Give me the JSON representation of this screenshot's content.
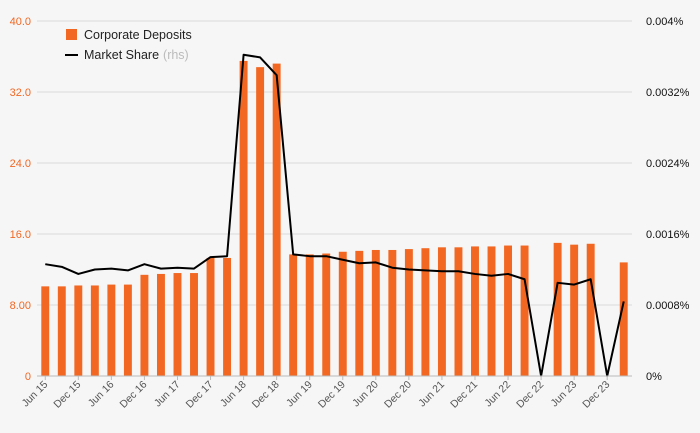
{
  "chart_data": {
    "type": "bar",
    "categories": [
      "Jun 15",
      "Sep 15",
      "Dec 15",
      "Mar 16",
      "Jun 16",
      "Sep 16",
      "Dec 16",
      "Mar 17",
      "Jun 17",
      "Sep 17",
      "Dec 17",
      "Mar 18",
      "Jun 18",
      "Sep 18",
      "Dec 18",
      "Mar 19",
      "Jun 19",
      "Sep 19",
      "Dec 19",
      "Mar 20",
      "Jun 20",
      "Sep 20",
      "Dec 20",
      "Mar 21",
      "Jun 21",
      "Sep 21",
      "Dec 21",
      "Mar 22",
      "Jun 22",
      "Sep 22",
      "Dec 22",
      "Mar 23",
      "Jun 23",
      "Sep 23",
      "Dec 23",
      "Mar 24"
    ],
    "x_tick_labels": [
      "Jun 15",
      "Dec 15",
      "Jun 16",
      "Dec 16",
      "Jun 17",
      "Dec 17",
      "Jun 18",
      "Dec 18",
      "Jun 19",
      "Dec 19",
      "Jun 20",
      "Dec 20",
      "Jun 21",
      "Dec 21",
      "Jun 22",
      "Dec 22",
      "Jun 23",
      "Dec 23"
    ],
    "series": [
      {
        "name": "Corporate Deposits",
        "axis": "left",
        "kind": "bar",
        "color": "#f26722",
        "values": [
          10.1,
          10.1,
          10.2,
          10.2,
          10.3,
          10.3,
          11.4,
          11.5,
          11.6,
          11.6,
          13.3,
          13.3,
          35.5,
          34.8,
          35.2,
          13.7,
          13.7,
          13.8,
          14.0,
          14.1,
          14.2,
          14.2,
          14.3,
          14.4,
          14.5,
          14.5,
          14.6,
          14.6,
          14.7,
          14.7,
          0,
          15.0,
          14.8,
          14.9,
          0,
          12.8
        ]
      },
      {
        "name": "Market Share",
        "name_suffix": "(rhs)",
        "axis": "right",
        "kind": "line",
        "color": "#000000",
        "values": [
          0.00126,
          0.00123,
          0.00115,
          0.0012,
          0.00121,
          0.00119,
          0.00126,
          0.00121,
          0.00122,
          0.00121,
          0.00134,
          0.00135,
          0.00362,
          0.00359,
          0.00339,
          0.00137,
          0.00135,
          0.00135,
          0.00131,
          0.00127,
          0.00128,
          0.00122,
          0.0012,
          0.00119,
          0.00118,
          0.00118,
          0.00115,
          0.00113,
          0.00115,
          0.00109,
          0,
          0.00105,
          0.00103,
          0.00109,
          0,
          0.00084
        ]
      }
    ],
    "y_left": {
      "ylim": [
        0,
        40
      ],
      "ticks": [
        "0",
        "8.00",
        "16.0",
        "24.0",
        "32.0",
        "40.0"
      ],
      "color": "#f26722"
    },
    "y_right": {
      "ylim": [
        0,
        0.004
      ],
      "ticks": [
        "0%",
        "0.0008%",
        "0.0016%",
        "0.0024%",
        "0.0032%",
        "0.004%"
      ],
      "color": "#111111"
    },
    "grid": true,
    "grid_axis": "y",
    "legend_position": "top-left",
    "title": "",
    "xlabel": "",
    "ylabel": ""
  }
}
